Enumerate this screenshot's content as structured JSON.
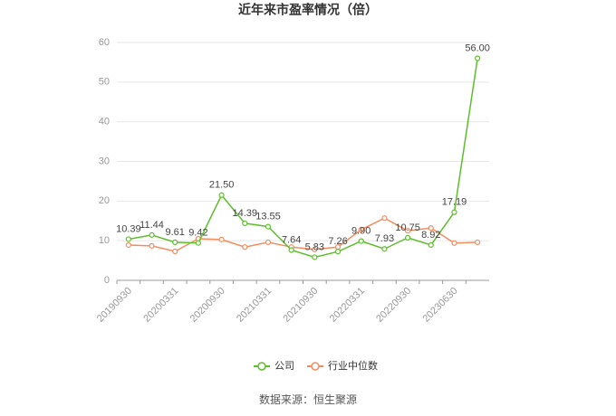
{
  "chart_data": {
    "type": "line",
    "title": "近年来市盈率情况（倍）",
    "categories": [
      "20190930",
      null,
      "20200331",
      null,
      "20200930",
      null,
      "20210331",
      null,
      "20210930",
      null,
      "20220331",
      null,
      "20220930",
      null,
      "20230630",
      null
    ],
    "series": [
      {
        "name": "公司",
        "color": "#5cbf2a",
        "values": [
          10.39,
          11.44,
          9.61,
          9.42,
          21.5,
          14.39,
          13.55,
          7.64,
          5.83,
          7.26,
          9.9,
          7.93,
          10.75,
          8.92,
          17.19,
          56.0
        ],
        "value_labels": [
          "10.39",
          "11.44",
          "9.61",
          "9.42",
          "21.50",
          "14.39",
          "13.55",
          "7.64",
          "5.83",
          "7.26",
          "9.90",
          "7.93",
          "10.75",
          "8.92",
          "17.19",
          "56.00"
        ]
      },
      {
        "name": "行业中位数",
        "color": "#f28c5e",
        "values": [
          8.9,
          8.7,
          7.3,
          10.5,
          10.3,
          8.4,
          9.6,
          8.4,
          7.8,
          8.4,
          12.8,
          15.7,
          12.5,
          13.2,
          9.4,
          9.6
        ]
      }
    ],
    "ylim": [
      0,
      60
    ],
    "yticks": [
      0,
      10,
      20,
      30,
      40,
      50,
      60
    ],
    "grid": true,
    "legend": "bottom",
    "source": "数据来源：恒生聚源"
  }
}
